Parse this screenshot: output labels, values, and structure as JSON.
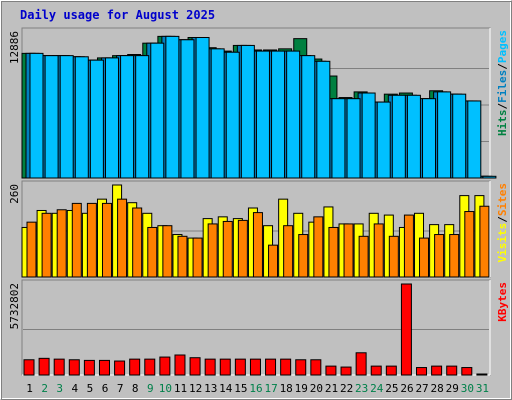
{
  "chart_data": {
    "type": "bar",
    "title": "Daily usage for August 2025",
    "days": [
      "1",
      "2",
      "3",
      "4",
      "5",
      "6",
      "7",
      "8",
      "9",
      "10",
      "11",
      "12",
      "13",
      "14",
      "15",
      "16",
      "17",
      "18",
      "19",
      "20",
      "21",
      "22",
      "23",
      "24",
      "25",
      "26",
      "27",
      "28",
      "29",
      "30",
      "31"
    ],
    "weekend_days": [
      "2",
      "3",
      "9",
      "10",
      "16",
      "17",
      "23",
      "24",
      "30",
      "31"
    ],
    "colors": {
      "background": "#c0c0c0",
      "title": "#0000cc",
      "weekday_label": "#000000",
      "weekend_label": "#00804a",
      "hits": "#008040",
      "files": "#0080c0",
      "pages": "#00c0ff",
      "visits": "#ffff00",
      "sites": "#ff8000",
      "kbytes": "#ff0000"
    },
    "panels": [
      {
        "id": "hits-files-pages",
        "max_label": "12886",
        "ylim": [
          0,
          12886
        ],
        "legend": [
          {
            "label": "Hits",
            "color": "#008040"
          },
          {
            "label": "/",
            "color": "#000000"
          },
          {
            "label": "Files",
            "color": "#0080c0"
          },
          {
            "label": "/",
            "color": "#000000"
          },
          {
            "label": "Pages",
            "color": "#00c0ff"
          }
        ],
        "series": [
          {
            "name": "Hits",
            "color": "#008040",
            "values": [
              11000,
              10800,
              10800,
              10700,
              10400,
              10600,
              10800,
              10900,
              11900,
              12500,
              12200,
              12400,
              11500,
              11200,
              11700,
              11300,
              11300,
              11400,
              12300,
              10500,
              9000,
              7100,
              7600,
              6700,
              7400,
              7500,
              7000,
              7700,
              7400,
              6800,
              150
            ]
          },
          {
            "name": "Files",
            "color": "#0080c0",
            "values": [
              11000,
              10800,
              10800,
              10700,
              10400,
              10600,
              10800,
              10800,
              11900,
              12500,
              12200,
              12400,
              11400,
              11100,
              11700,
              11200,
              11200,
              11200,
              10800,
              10300,
              7000,
              7000,
              7500,
              6700,
              7300,
              7300,
              7000,
              7600,
              7400,
              6800,
              150
            ]
          },
          {
            "name": "Pages",
            "color": "#00c0ff",
            "values": [
              11000,
              10800,
              10800,
              10700,
              10400,
              10600,
              10800,
              10800,
              11900,
              12500,
              12200,
              12400,
              11400,
              11100,
              11700,
              11200,
              11200,
              11200,
              10800,
              10300,
              7000,
              7000,
              7500,
              6700,
              7300,
              7300,
              7000,
              7600,
              7400,
              6800,
              150
            ]
          }
        ]
      },
      {
        "id": "visits-sites",
        "max_label": "260",
        "ylim": [
          0,
          260
        ],
        "legend": [
          {
            "label": "Visits",
            "color": "#ffff00"
          },
          {
            "label": "/",
            "color": "#000000"
          },
          {
            "label": "Sites",
            "color": "#ff8000"
          }
        ],
        "series": [
          {
            "name": "Visits",
            "color": "#ffff00",
            "values": [
              140,
              188,
              180,
              188,
              180,
              220,
              260,
              210,
              180,
              145,
              120,
              110,
              165,
              170,
              165,
              195,
              145,
              220,
              180,
              155,
              198,
              150,
              150,
              180,
              175,
              140,
              180,
              148,
              148,
              230,
              230
            ]
          },
          {
            "name": "Sites",
            "color": "#ff8000",
            "values": [
              155,
              180,
              190,
              208,
              208,
              208,
              220,
              195,
              140,
              145,
              115,
              110,
              150,
              157,
              160,
              182,
              90,
              145,
              120,
              170,
              140,
              150,
              115,
              150,
              115,
              175,
              110,
              120,
              120,
              185,
              200
            ]
          }
        ]
      },
      {
        "id": "kbytes",
        "max_label": "5732802",
        "ylim": [
          0,
          5732802
        ],
        "legend": [
          {
            "label": "KBytes",
            "color": "#ff0000"
          }
        ],
        "series": [
          {
            "name": "KBytes",
            "color": "#ff0000",
            "values": [
              960000,
              1050000,
              1000000,
              960000,
              920000,
              920000,
              880000,
              1000000,
              1000000,
              1130000,
              1260000,
              1090000,
              1000000,
              1000000,
              1000000,
              1000000,
              1000000,
              1000000,
              960000,
              960000,
              560000,
              500000,
              1400000,
              560000,
              560000,
              5732802,
              470000,
              560000,
              560000,
              470000,
              40000
            ]
          }
        ]
      }
    ]
  }
}
